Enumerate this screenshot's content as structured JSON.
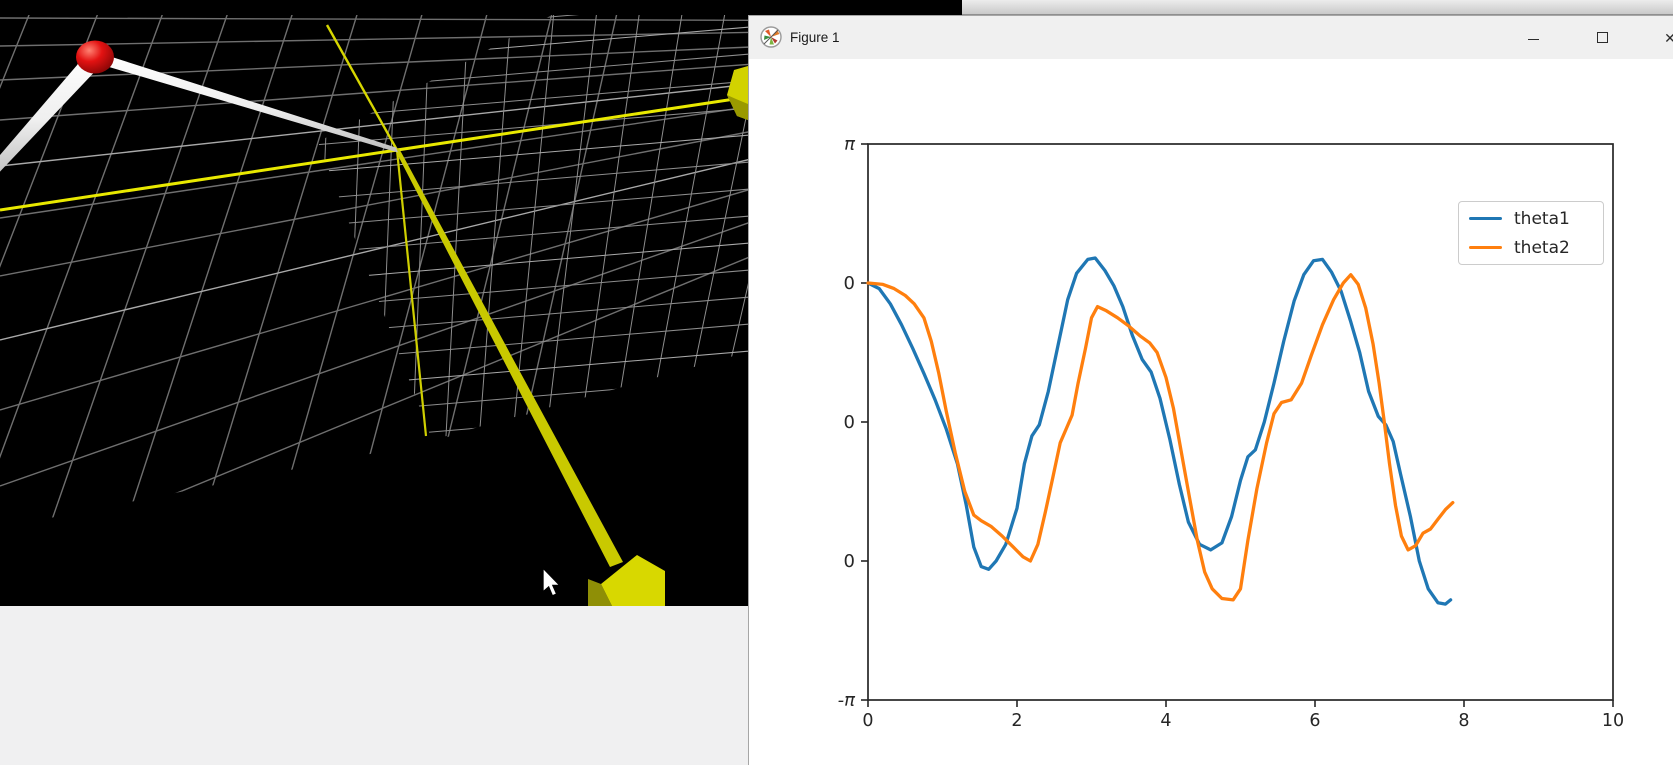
{
  "desktop": {
    "background_color": "#f0f0f1",
    "top_strip_black_color": "#000000",
    "top_strip_gray_color": "#dddddd"
  },
  "scene3d": {
    "background_color": "#000000",
    "grid_color": "#6f6f6f",
    "grid_fine_color": "#8d8d8d",
    "grid_bright_color": "#a9a9a9",
    "axis_color": "#e9e900",
    "beam_color": "#c9c900",
    "box_top_color": "#d8d800",
    "box_side_color": "#8f8f06",
    "cube_top_color": "#d2d200",
    "cube_side_color": "#9a9a00",
    "rod_color": "#f2f2f2",
    "rod_shade_color": "#c9c9c9",
    "ball_color": "#d81414",
    "cursor_icon": "arrow-cursor"
  },
  "window": {
    "title": "Figure 1",
    "icon": "matplotlib-logo",
    "controls": {
      "minimize": "",
      "maximize": "",
      "close": "✕"
    }
  },
  "chart_data": {
    "type": "line",
    "title": "",
    "xlabel": "",
    "ylabel": "",
    "xlim": [
      0,
      10
    ],
    "ylim_tick_units": [
      -3,
      1
    ],
    "grid": false,
    "x_ticks": {
      "values": [
        0,
        2,
        4,
        6,
        8,
        10
      ],
      "labels": [
        "0",
        "2",
        "4",
        "6",
        "8",
        "10"
      ]
    },
    "y_ticks": {
      "positions": [
        1,
        0,
        -1,
        -2,
        -3
      ],
      "labels": [
        "π",
        "0",
        "0",
        "0",
        "-π"
      ]
    },
    "legend": {
      "position": "upper right"
    },
    "series": [
      {
        "name": "theta1",
        "color": "#1f77b4",
        "points": [
          [
            0,
            0
          ],
          [
            0.15,
            -0.04
          ],
          [
            0.3,
            -0.15
          ],
          [
            0.45,
            -0.3
          ],
          [
            0.6,
            -0.47
          ],
          [
            0.75,
            -0.65
          ],
          [
            0.9,
            -0.84
          ],
          [
            1.05,
            -1.05
          ],
          [
            1.2,
            -1.3
          ],
          [
            1.32,
            -1.6
          ],
          [
            1.42,
            -1.9
          ],
          [
            1.52,
            -2.04
          ],
          [
            1.62,
            -2.06
          ],
          [
            1.72,
            -2.0
          ],
          [
            1.85,
            -1.88
          ],
          [
            2.0,
            -1.62
          ],
          [
            2.1,
            -1.3
          ],
          [
            2.2,
            -1.1
          ],
          [
            2.3,
            -1.02
          ],
          [
            2.42,
            -0.78
          ],
          [
            2.55,
            -0.45
          ],
          [
            2.68,
            -0.12
          ],
          [
            2.8,
            0.07
          ],
          [
            2.95,
            0.17
          ],
          [
            3.05,
            0.18
          ],
          [
            3.18,
            0.09
          ],
          [
            3.3,
            -0.02
          ],
          [
            3.42,
            -0.17
          ],
          [
            3.55,
            -0.38
          ],
          [
            3.68,
            -0.55
          ],
          [
            3.8,
            -0.64
          ],
          [
            3.92,
            -0.83
          ],
          [
            4.05,
            -1.12
          ],
          [
            4.18,
            -1.45
          ],
          [
            4.3,
            -1.72
          ],
          [
            4.45,
            -1.88
          ],
          [
            4.6,
            -1.92
          ],
          [
            4.75,
            -1.87
          ],
          [
            4.88,
            -1.68
          ],
          [
            5.0,
            -1.42
          ],
          [
            5.1,
            -1.25
          ],
          [
            5.2,
            -1.2
          ],
          [
            5.32,
            -1.0
          ],
          [
            5.45,
            -0.72
          ],
          [
            5.58,
            -0.42
          ],
          [
            5.72,
            -0.13
          ],
          [
            5.85,
            0.06
          ],
          [
            5.98,
            0.16
          ],
          [
            6.1,
            0.17
          ],
          [
            6.22,
            0.08
          ],
          [
            6.35,
            -0.06
          ],
          [
            6.48,
            -0.28
          ],
          [
            6.6,
            -0.5
          ],
          [
            6.72,
            -0.78
          ],
          [
            6.85,
            -0.96
          ],
          [
            6.95,
            -1.02
          ],
          [
            7.05,
            -1.14
          ],
          [
            7.15,
            -1.38
          ],
          [
            7.28,
            -1.68
          ],
          [
            7.4,
            -2.0
          ],
          [
            7.52,
            -2.2
          ],
          [
            7.65,
            -2.3
          ],
          [
            7.75,
            -2.31
          ],
          [
            7.82,
            -2.28
          ]
        ]
      },
      {
        "name": "theta2",
        "color": "#ff7f0e",
        "points": [
          [
            0,
            0
          ],
          [
            0.2,
            -0.01
          ],
          [
            0.35,
            -0.04
          ],
          [
            0.5,
            -0.09
          ],
          [
            0.62,
            -0.15
          ],
          [
            0.75,
            -0.25
          ],
          [
            0.85,
            -0.42
          ],
          [
            0.95,
            -0.65
          ],
          [
            1.05,
            -0.92
          ],
          [
            1.17,
            -1.22
          ],
          [
            1.3,
            -1.5
          ],
          [
            1.42,
            -1.67
          ],
          [
            1.52,
            -1.71
          ],
          [
            1.65,
            -1.75
          ],
          [
            1.8,
            -1.82
          ],
          [
            1.95,
            -1.9
          ],
          [
            2.08,
            -1.97
          ],
          [
            2.18,
            -2.0
          ],
          [
            2.28,
            -1.88
          ],
          [
            2.38,
            -1.65
          ],
          [
            2.48,
            -1.4
          ],
          [
            2.58,
            -1.15
          ],
          [
            2.66,
            -1.05
          ],
          [
            2.74,
            -0.95
          ],
          [
            2.82,
            -0.72
          ],
          [
            2.92,
            -0.47
          ],
          [
            3.0,
            -0.25
          ],
          [
            3.08,
            -0.17
          ],
          [
            3.2,
            -0.2
          ],
          [
            3.35,
            -0.25
          ],
          [
            3.5,
            -0.31
          ],
          [
            3.65,
            -0.38
          ],
          [
            3.78,
            -0.43
          ],
          [
            3.88,
            -0.5
          ],
          [
            4.0,
            -0.68
          ],
          [
            4.1,
            -0.9
          ],
          [
            4.2,
            -1.2
          ],
          [
            4.3,
            -1.5
          ],
          [
            4.42,
            -1.85
          ],
          [
            4.52,
            -2.08
          ],
          [
            4.62,
            -2.2
          ],
          [
            4.75,
            -2.27
          ],
          [
            4.9,
            -2.28
          ],
          [
            5.0,
            -2.2
          ],
          [
            5.1,
            -1.85
          ],
          [
            5.22,
            -1.48
          ],
          [
            5.35,
            -1.15
          ],
          [
            5.45,
            -0.94
          ],
          [
            5.55,
            -0.86
          ],
          [
            5.68,
            -0.84
          ],
          [
            5.82,
            -0.72
          ],
          [
            5.95,
            -0.52
          ],
          [
            6.1,
            -0.3
          ],
          [
            6.25,
            -0.12
          ],
          [
            6.38,
            0.0
          ],
          [
            6.48,
            0.06
          ],
          [
            6.58,
            -0.01
          ],
          [
            6.68,
            -0.18
          ],
          [
            6.78,
            -0.44
          ],
          [
            6.86,
            -0.72
          ],
          [
            6.93,
            -1.0
          ],
          [
            7.0,
            -1.3
          ],
          [
            7.08,
            -1.6
          ],
          [
            7.16,
            -1.82
          ],
          [
            7.25,
            -1.92
          ],
          [
            7.35,
            -1.89
          ],
          [
            7.45,
            -1.8
          ],
          [
            7.55,
            -1.77
          ],
          [
            7.65,
            -1.7
          ],
          [
            7.75,
            -1.63
          ],
          [
            7.85,
            -1.58
          ]
        ]
      }
    ]
  }
}
